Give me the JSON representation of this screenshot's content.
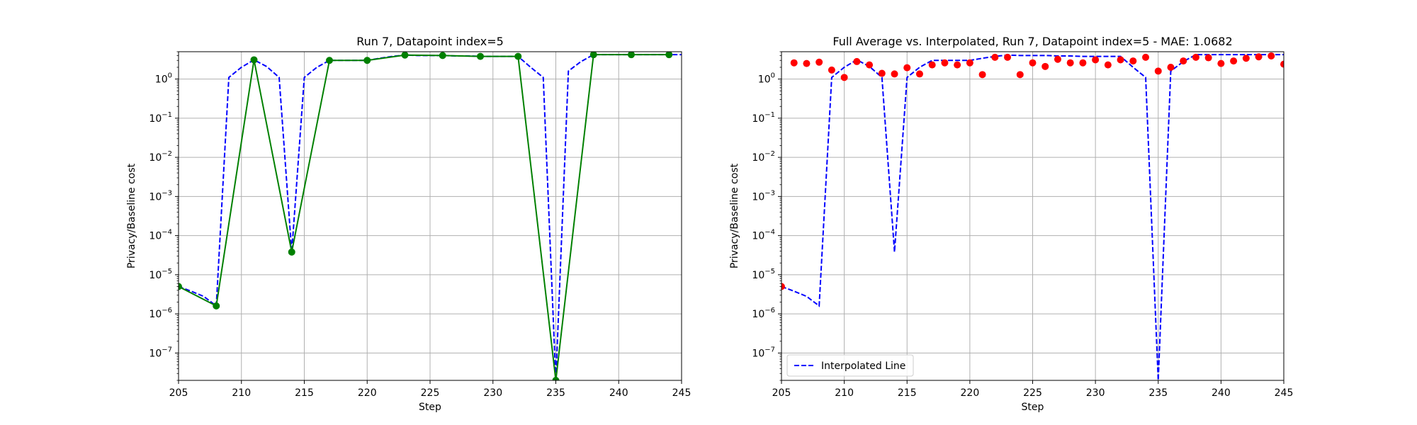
{
  "chart_data": [
    {
      "type": "line",
      "title": "Run 7, Datapoint index=5",
      "xlabel": "Step",
      "ylabel": "Privacy/Baseline cost",
      "xlim": [
        205,
        245
      ],
      "ylim": [
        2e-08,
        5
      ],
      "yscale": "log",
      "grid": true,
      "x_ticks": [
        205,
        210,
        215,
        220,
        225,
        230,
        235,
        240,
        245
      ],
      "y_ticks": [
        {
          "value": 1e-07,
          "base": "10",
          "exp": "−7"
        },
        {
          "value": 1e-06,
          "base": "10",
          "exp": "−6"
        },
        {
          "value": 1e-05,
          "base": "10",
          "exp": "−5"
        },
        {
          "value": 0.0001,
          "base": "10",
          "exp": "−4"
        },
        {
          "value": 0.001,
          "base": "10",
          "exp": "−3"
        },
        {
          "value": 0.01,
          "base": "10",
          "exp": "−2"
        },
        {
          "value": 0.1,
          "base": "10",
          "exp": "−1"
        },
        {
          "value": 1,
          "base": "10",
          "exp": "0"
        }
      ],
      "series": [
        {
          "style": "dashed",
          "color": "#0000ff",
          "x": [
            205,
            206,
            207,
            208,
            209,
            210,
            211,
            212,
            213,
            214,
            215,
            216,
            217,
            218,
            219,
            220,
            221,
            222,
            223,
            224,
            225,
            226,
            227,
            228,
            229,
            230,
            231,
            232,
            233,
            234,
            235,
            236,
            237,
            238,
            239,
            240,
            241,
            242,
            243,
            244,
            245
          ],
          "y": [
            5e-06,
            3.8e-06,
            2.8e-06,
            1.6e-06,
            1.1,
            2.0,
            3.1,
            2.1,
            1.1,
            3.8e-05,
            1.1,
            2.0,
            3.0,
            3.0,
            3.0,
            3.0,
            3.4,
            3.8,
            4.1,
            4.0,
            4.0,
            4.0,
            3.9,
            3.9,
            3.8,
            3.8,
            3.8,
            3.8,
            2.0,
            1.1,
            2e-08,
            1.6,
            2.8,
            4.2,
            4.2,
            4.2,
            4.2,
            4.2,
            4.2,
            4.2,
            4.2
          ]
        },
        {
          "style": "solid-markers",
          "color": "#008000",
          "x": [
            205,
            208,
            211,
            214,
            217,
            220,
            223,
            226,
            229,
            232,
            235,
            238,
            241,
            244
          ],
          "y": [
            5e-06,
            1.6e-06,
            3.1,
            3.8e-05,
            3.0,
            3.0,
            4.1,
            4.0,
            3.8,
            3.8,
            2e-08,
            4.2,
            4.2,
            4.2
          ]
        }
      ]
    },
    {
      "type": "line",
      "title": "Full Average vs. Interpolated, Run 7, Datapoint index=5 - MAE: 1.0682",
      "xlabel": "Step",
      "ylabel": "Privacy/Baseline cost",
      "xlim": [
        205,
        245
      ],
      "ylim": [
        2e-08,
        5
      ],
      "yscale": "log",
      "grid": true,
      "legend": "bottom-left",
      "x_ticks": [
        205,
        210,
        215,
        220,
        225,
        230,
        235,
        240,
        245
      ],
      "y_ticks": [
        {
          "value": 1e-07,
          "base": "10",
          "exp": "−7"
        },
        {
          "value": 1e-06,
          "base": "10",
          "exp": "−6"
        },
        {
          "value": 1e-05,
          "base": "10",
          "exp": "−5"
        },
        {
          "value": 0.0001,
          "base": "10",
          "exp": "−4"
        },
        {
          "value": 0.001,
          "base": "10",
          "exp": "−3"
        },
        {
          "value": 0.01,
          "base": "10",
          "exp": "−2"
        },
        {
          "value": 0.1,
          "base": "10",
          "exp": "−1"
        },
        {
          "value": 1,
          "base": "10",
          "exp": "0"
        }
      ],
      "series": [
        {
          "name": "Interpolated Line",
          "style": "dashed",
          "color": "#0000ff",
          "x": [
            205,
            206,
            207,
            208,
            209,
            210,
            211,
            212,
            213,
            214,
            215,
            216,
            217,
            218,
            219,
            220,
            221,
            222,
            223,
            224,
            225,
            226,
            227,
            228,
            229,
            230,
            231,
            232,
            233,
            234,
            235,
            236,
            237,
            238,
            239,
            240,
            241,
            242,
            243,
            244,
            245
          ],
          "y": [
            5e-06,
            3.8e-06,
            2.8e-06,
            1.6e-06,
            1.1,
            2.0,
            3.1,
            2.1,
            1.1,
            3.8e-05,
            1.1,
            2.0,
            3.0,
            3.0,
            3.0,
            3.0,
            3.4,
            3.8,
            4.1,
            4.0,
            4.0,
            4.0,
            3.9,
            3.9,
            3.8,
            3.8,
            3.8,
            3.8,
            2.0,
            1.1,
            2e-08,
            1.6,
            2.8,
            4.2,
            4.2,
            4.2,
            4.2,
            4.2,
            4.2,
            4.2,
            4.2
          ]
        },
        {
          "style": "scatter",
          "color": "#ff0000",
          "x": [
            205,
            206,
            207,
            208,
            209,
            210,
            211,
            212,
            213,
            214,
            215,
            216,
            217,
            218,
            219,
            220,
            221,
            222,
            223,
            224,
            225,
            226,
            227,
            228,
            229,
            230,
            231,
            232,
            233,
            234,
            235,
            236,
            237,
            238,
            239,
            240,
            241,
            242,
            243,
            244,
            245
          ],
          "y": [
            5e-06,
            2.6,
            2.5,
            2.7,
            1.7,
            1.1,
            2.8,
            2.3,
            1.4,
            1.35,
            1.95,
            1.35,
            2.3,
            2.6,
            2.3,
            2.6,
            1.3,
            3.6,
            3.6,
            1.3,
            2.6,
            2.1,
            3.2,
            2.6,
            2.6,
            3.1,
            2.3,
            3.1,
            2.9,
            3.6,
            1.6,
            2.0,
            2.9,
            3.6,
            3.5,
            2.5,
            2.9,
            3.4,
            3.7,
            3.9,
            2.4
          ]
        }
      ]
    }
  ]
}
